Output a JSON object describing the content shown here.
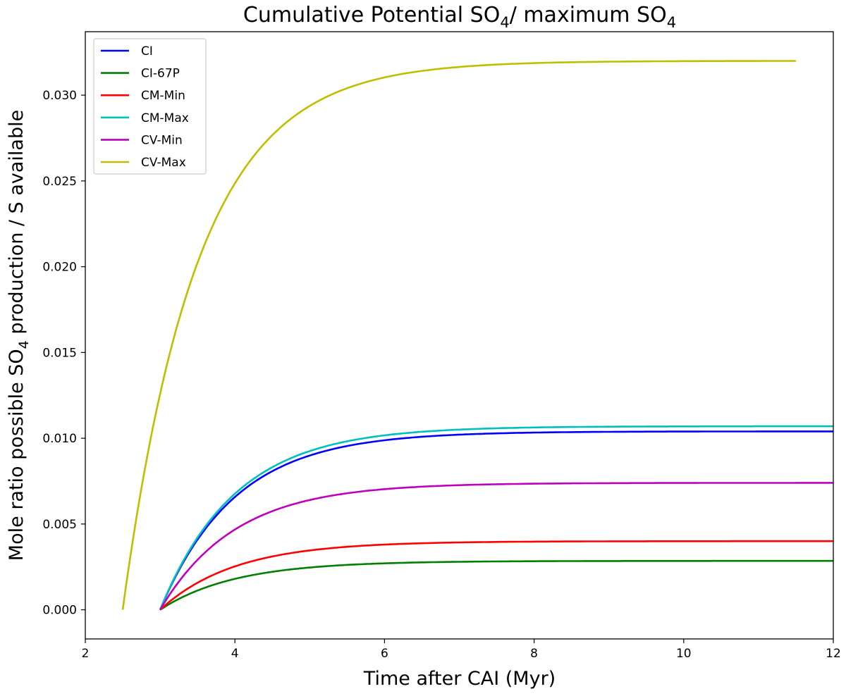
{
  "chart_data": {
    "type": "line",
    "title": {
      "main": "Cumulative Potential SO",
      "sub1": "4",
      "mid": "/ maximum SO",
      "sub2": "4"
    },
    "xlabel": "Time after CAI (Myr)",
    "ylabel": {
      "pre": "Mole ratio possible SO",
      "sub": "4",
      "post": " production / S available"
    },
    "xlim": [
      2,
      12
    ],
    "ylim": [
      -0.0017,
      0.0337
    ],
    "xticks": [
      2,
      4,
      6,
      8,
      10,
      12
    ],
    "yticks": [
      0.0,
      0.005,
      0.01,
      0.015,
      0.02,
      0.025,
      0.03
    ],
    "ytick_labels": [
      "0.000",
      "0.005",
      "0.010",
      "0.015",
      "0.020",
      "0.025",
      "0.030"
    ],
    "grid": false,
    "legend_position": "top-left",
    "series": [
      {
        "name": "CI",
        "color": "#0000ff",
        "start": 3.0,
        "end": 12.0,
        "plateau": 0.0104,
        "tau": 1.0
      },
      {
        "name": "CI-67P",
        "color": "#008000",
        "start": 3.0,
        "end": 12.0,
        "plateau": 0.00285,
        "tau": 1.0
      },
      {
        "name": "CM-Min",
        "color": "#ff0000",
        "start": 3.0,
        "end": 12.0,
        "plateau": 0.004,
        "tau": 1.0
      },
      {
        "name": "CM-Max",
        "color": "#00bfbf",
        "start": 3.0,
        "end": 12.0,
        "plateau": 0.0107,
        "tau": 1.0
      },
      {
        "name": "CV-Min",
        "color": "#bf00bf",
        "start": 3.0,
        "end": 12.0,
        "plateau": 0.0074,
        "tau": 1.0
      },
      {
        "name": "CV-Max",
        "color": "#bfbf00",
        "start": 2.5,
        "end": 11.5,
        "plateau": 0.032,
        "tau": 1.0
      }
    ]
  }
}
